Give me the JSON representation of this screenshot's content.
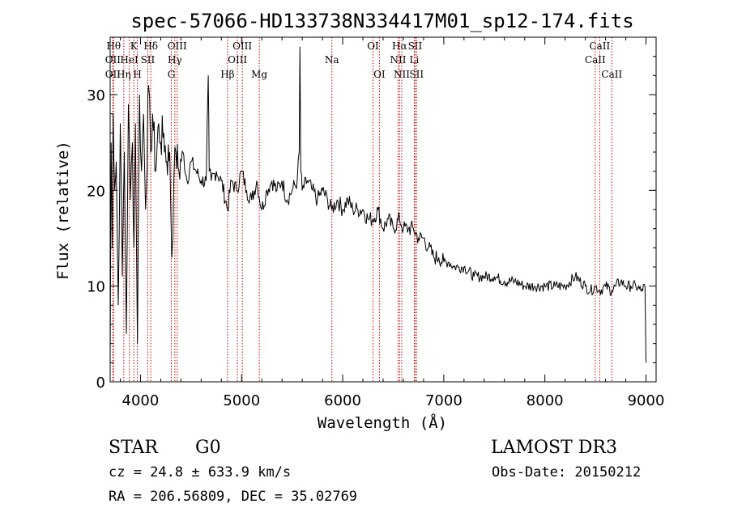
{
  "chart_data": {
    "type": "line",
    "title": "spec-57066-HD133738N334417M01_sp12-174.fits",
    "xlabel": "Wavelength (Å)",
    "ylabel": "Flux (relative)",
    "xlim": [
      3700,
      9100
    ],
    "ylim": [
      0,
      36
    ],
    "xticks": [
      4000,
      5000,
      6000,
      7000,
      8000,
      9000
    ],
    "yticks": [
      0,
      10,
      20,
      30
    ],
    "line_color": "#000000",
    "marker_color": "#cc0000",
    "series": [
      {
        "name": "flux",
        "x": [
          3700,
          3710,
          3720,
          3730,
          3745,
          3760,
          3780,
          3800,
          3820,
          3840,
          3860,
          3880,
          3900,
          3920,
          3935,
          3950,
          3970,
          3990,
          4010,
          4030,
          4050,
          4080,
          4100,
          4120,
          4150,
          4180,
          4200,
          4230,
          4260,
          4290,
          4310,
          4330,
          4350,
          4380,
          4420,
          4460,
          4500,
          4550,
          4600,
          4650,
          4670,
          4680,
          4700,
          4750,
          4800,
          4861,
          4900,
          4950,
          5000,
          5050,
          5100,
          5150,
          5200,
          5250,
          5300,
          5350,
          5400,
          5450,
          5500,
          5550,
          5570,
          5577,
          5585,
          5600,
          5650,
          5700,
          5750,
          5800,
          5850,
          5890,
          5950,
          6000,
          6050,
          6100,
          6150,
          6200,
          6250,
          6300,
          6350,
          6400,
          6450,
          6500,
          6563,
          6600,
          6650,
          6700,
          6750,
          6800,
          6850,
          6900,
          6950,
          7000,
          7050,
          7100,
          7150,
          7200,
          7300,
          7400,
          7500,
          7600,
          7700,
          7800,
          7900,
          8000,
          8100,
          8200,
          8300,
          8400,
          8450,
          8500,
          8542,
          8600,
          8662,
          8700,
          8750,
          8800,
          8850,
          8900,
          8950,
          8990,
          9000
        ],
        "y": [
          2,
          25,
          14,
          28,
          20,
          23,
          8,
          27,
          11,
          24,
          5,
          29,
          19,
          25,
          14,
          27,
          4,
          30,
          22,
          28,
          18,
          31,
          24,
          28,
          22,
          27,
          25,
          26,
          23,
          24,
          13,
          21,
          24,
          22,
          24,
          21,
          23,
          22,
          21,
          21,
          32,
          22,
          21,
          22,
          21,
          18,
          21,
          20,
          22,
          20,
          19,
          21,
          18,
          20,
          21,
          20,
          21,
          19,
          20,
          21,
          24,
          35,
          22,
          20,
          21,
          20,
          19,
          20,
          19,
          18,
          19,
          18,
          19,
          18,
          18,
          18,
          17,
          17,
          18,
          16,
          17,
          16,
          17,
          16,
          16,
          16,
          15,
          15,
          14,
          13,
          13,
          12.5,
          12.5,
          12,
          12,
          12,
          11,
          11,
          11,
          10.5,
          10.5,
          10,
          10,
          10,
          10,
          10,
          11,
          10,
          9.5,
          10,
          9.5,
          10,
          9.5,
          10,
          10.5,
          10,
          10,
          10,
          9.5,
          10,
          2
        ]
      }
    ],
    "lines": [
      {
        "label": "Hθ",
        "x": 3734,
        "row": 0
      },
      {
        "label": "OII",
        "x": 3727,
        "row": 1
      },
      {
        "label": "OII",
        "x": 3727,
        "row": 2
      },
      {
        "label": "Hη",
        "x": 3835,
        "row": 2
      },
      {
        "label": "HeI",
        "x": 3889,
        "row": 1
      },
      {
        "label": "K",
        "x": 3934,
        "row": 0
      },
      {
        "label": "SII",
        "x": 4072,
        "row": 1
      },
      {
        "label": "H",
        "x": 3969,
        "row": 2
      },
      {
        "label": "Hδ",
        "x": 4102,
        "row": 0
      },
      {
        "label": "OIII",
        "x": 4363,
        "row": 0
      },
      {
        "label": "Hγ",
        "x": 4340,
        "row": 1
      },
      {
        "label": "G",
        "x": 4305,
        "row": 2
      },
      {
        "label": "Hβ",
        "x": 4861,
        "row": 2
      },
      {
        "label": "OIII",
        "x": 5007,
        "row": 0
      },
      {
        "label": "OIII",
        "x": 4959,
        "row": 1
      },
      {
        "label": "Mg",
        "x": 5175,
        "row": 2
      },
      {
        "label": "Na",
        "x": 5893,
        "row": 1
      },
      {
        "label": "OI",
        "x": 6300,
        "row": 0
      },
      {
        "label": "OI",
        "x": 6363,
        "row": 2
      },
      {
        "label": "Hα",
        "x": 6563,
        "row": 0
      },
      {
        "label": "SII",
        "x": 6716,
        "row": 0
      },
      {
        "label": "NII",
        "x": 6548,
        "row": 1
      },
      {
        "label": "Li",
        "x": 6708,
        "row": 1
      },
      {
        "label": "NII",
        "x": 6584,
        "row": 2
      },
      {
        "label": "SII",
        "x": 6731,
        "row": 2
      },
      {
        "label": "CaII",
        "x": 8542,
        "row": 0
      },
      {
        "label": "CaII",
        "x": 8498,
        "row": 1
      },
      {
        "label": "CaII",
        "x": 8662,
        "row": 2
      }
    ]
  },
  "info": {
    "class_label": "STAR",
    "subclass": "G0",
    "survey": "LAMOST DR3",
    "redshift": "cz = 24.8 ± 633.9 km/s",
    "obs_date": "Obs-Date: 20150212",
    "coords": "RA = 206.56809, DEC =  35.02769"
  }
}
